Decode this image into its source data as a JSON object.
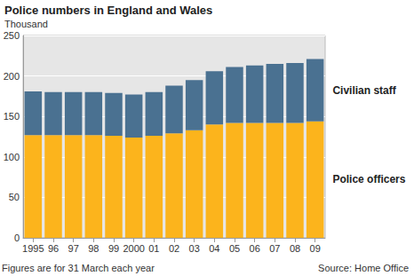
{
  "chart_data": {
    "type": "bar",
    "title": "Police numbers in England and Wales",
    "subtitle": "Thousand",
    "annotations": [
      "Figures are for 31 March each year",
      "Source: Home Office"
    ],
    "categories": [
      "1995",
      "96",
      "97",
      "98",
      "99",
      "2000",
      "01",
      "02",
      "03",
      "04",
      "05",
      "06",
      "07",
      "08",
      "09"
    ],
    "series": [
      {
        "name": "Police officers",
        "color": "#fcb41c",
        "values": [
          127,
          127,
          127,
          127,
          126,
          124,
          126,
          129,
          133,
          140,
          142,
          142,
          142,
          142,
          144
        ]
      },
      {
        "name": "Civilian staff",
        "color": "#4a7191",
        "values": [
          54,
          53,
          53,
          53,
          53,
          53,
          54,
          59,
          62,
          66,
          69,
          71,
          73,
          74,
          77
        ]
      }
    ],
    "stacked": true,
    "ylim": [
      0,
      250
    ],
    "yticks": [
      0,
      50,
      100,
      150,
      200,
      250
    ],
    "grid": true
  }
}
